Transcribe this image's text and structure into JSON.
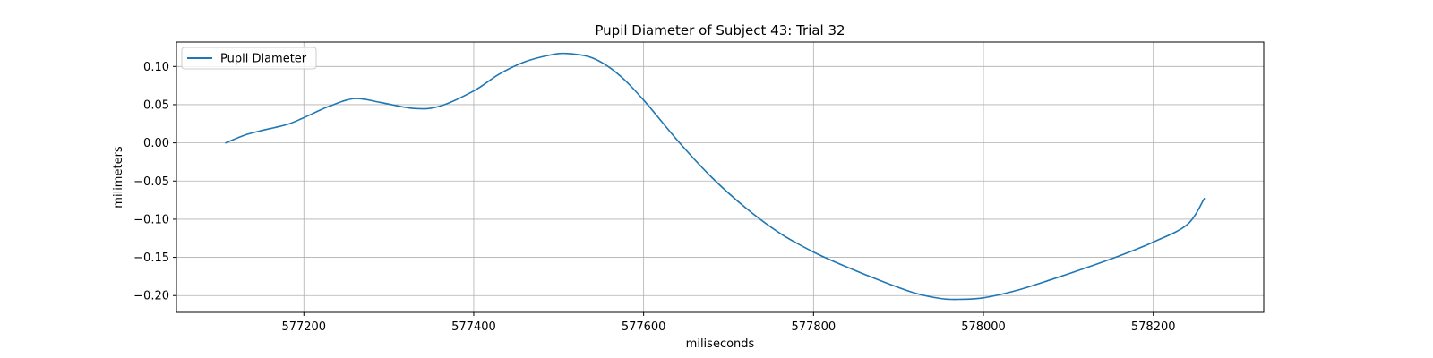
{
  "chart_data": {
    "type": "line",
    "title": "Pupil Diameter of Subject 43: Trial 32",
    "xlabel": "miliseconds",
    "ylabel": "milimeters",
    "xlim": [
      577050,
      578330
    ],
    "ylim": [
      -0.222,
      0.132
    ],
    "xticks": [
      577200,
      577400,
      577600,
      577800,
      578000,
      578200
    ],
    "xtick_labels": [
      "577200",
      "577400",
      "577600",
      "577800",
      "578000",
      "578200"
    ],
    "yticks": [
      0.1,
      0.05,
      0.0,
      -0.05,
      -0.1,
      -0.15,
      -0.2
    ],
    "ytick_labels": [
      "0.10",
      "0.05",
      "0.00",
      "−0.05",
      "−0.10",
      "−0.15",
      "−0.20"
    ],
    "grid": true,
    "legend_position": "upper-left",
    "series": [
      {
        "name": "Pupil Diameter",
        "color": "#1f77b4",
        "x": [
          577108,
          577130,
          577150,
          577180,
          577200,
          577230,
          577260,
          577290,
          577330,
          577360,
          577400,
          577430,
          577460,
          577490,
          577510,
          577540,
          577570,
          577600,
          577640,
          577680,
          577720,
          577760,
          577800,
          577840,
          577880,
          577920,
          577950,
          577970,
          578000,
          578040,
          578080,
          578120,
          578160,
          578200,
          578240,
          578260
        ],
        "y": [
          0.0,
          0.01,
          0.016,
          0.024,
          0.033,
          0.048,
          0.058,
          0.053,
          0.045,
          0.048,
          0.068,
          0.09,
          0.106,
          0.115,
          0.117,
          0.111,
          0.09,
          0.056,
          0.003,
          -0.045,
          -0.085,
          -0.118,
          -0.143,
          -0.163,
          -0.181,
          -0.197,
          -0.204,
          -0.205,
          -0.203,
          -0.193,
          -0.179,
          -0.164,
          -0.148,
          -0.13,
          -0.107,
          -0.073
        ]
      }
    ]
  }
}
